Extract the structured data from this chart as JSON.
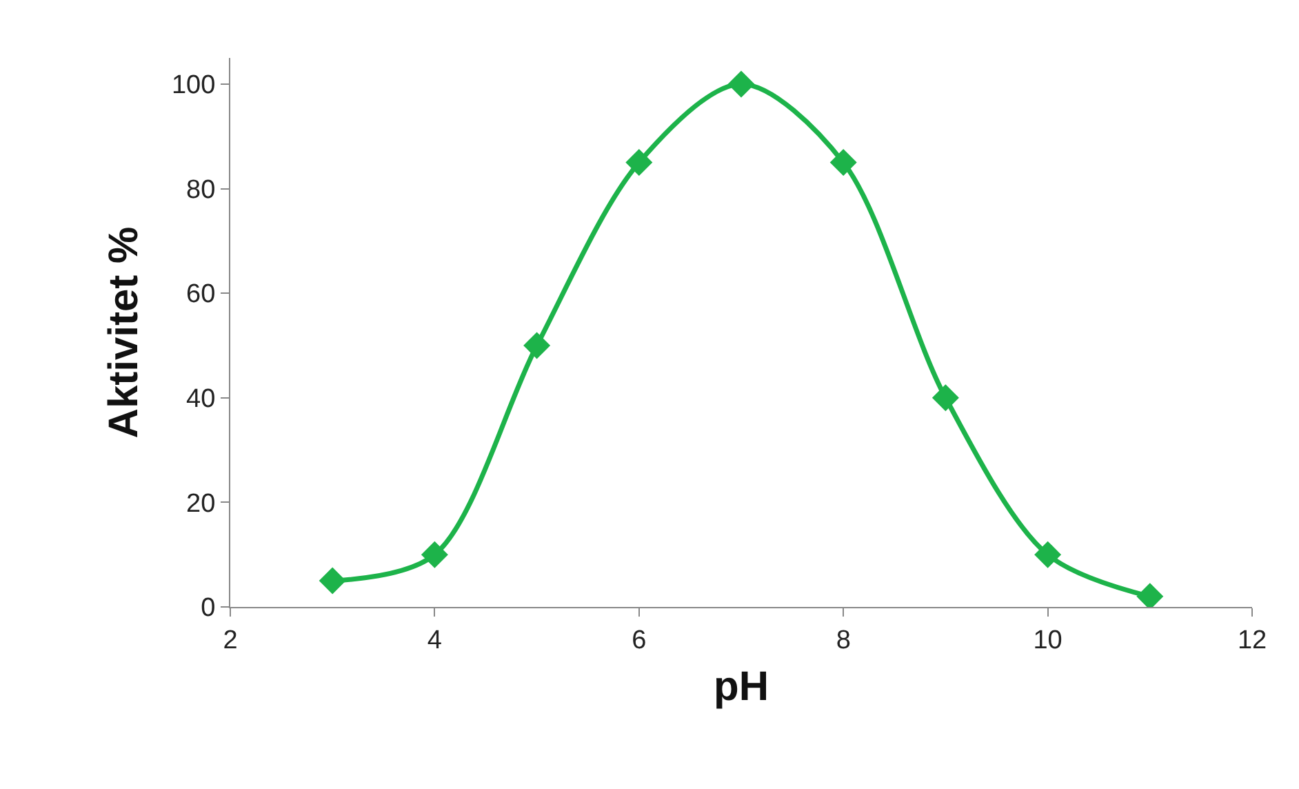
{
  "chart_data": {
    "type": "line",
    "xlabel": "pH",
    "ylabel": "Aktivitet %",
    "x": [
      3,
      4,
      5,
      6,
      7,
      8,
      9,
      10,
      11
    ],
    "series": [
      {
        "color": "#1db34a",
        "values": [
          5,
          10,
          50,
          85,
          100,
          85,
          40,
          10,
          2
        ]
      }
    ],
    "xlim": [
      2,
      12
    ],
    "xticks": [
      2,
      4,
      6,
      8,
      10,
      12
    ],
    "ylim": [
      0,
      105
    ],
    "yticks": [
      0,
      20,
      40,
      60,
      80,
      100
    ],
    "legend": false,
    "marker": "diamond",
    "line_style": "solid"
  }
}
